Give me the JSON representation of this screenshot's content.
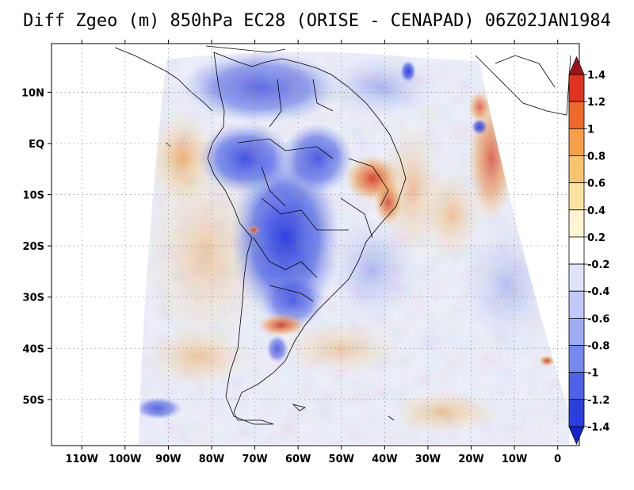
{
  "title": "Diff Zgeo (m) 850hPa EC28 (ORISE - CENAPAD) 06Z02JAN1984",
  "map": {
    "lon_ticks": [
      "110W",
      "100W",
      "90W",
      "80W",
      "70W",
      "60W",
      "50W",
      "40W",
      "30W",
      "20W",
      "10W",
      "0"
    ],
    "lon_values": [
      -110,
      -100,
      -90,
      -80,
      -70,
      -60,
      -50,
      -40,
      -30,
      -20,
      -10,
      0
    ],
    "lat_ticks": [
      "10N",
      "EQ",
      "10S",
      "20S",
      "30S",
      "40S",
      "50S"
    ],
    "lat_values": [
      10,
      0,
      -10,
      -20,
      -30,
      -40,
      -50
    ],
    "lon_range": [
      -117,
      5
    ],
    "lat_range": [
      -59,
      19.5
    ],
    "grid": true
  },
  "colorbar": {
    "labels": [
      "1.4",
      "1.2",
      "1",
      "0.8",
      "0.6",
      "0.4",
      "0.2",
      "-0.2",
      "-0.4",
      "-0.6",
      "-0.8",
      "-1",
      "-1.2",
      "-1.4"
    ],
    "colors": [
      "#b31a1a",
      "#e0341f",
      "#ef6a2a",
      "#f5a048",
      "#f8c56e",
      "#fbe2a0",
      "#fdf4d2",
      "#ffffff",
      "#dfe4fb",
      "#c0c9f7",
      "#9eadf3",
      "#7689ee",
      "#4e63e7",
      "#2b3fdf",
      "#1d29c9"
    ],
    "ext_top_color": "#a3121a",
    "ext_bottom_color": "#1522d0"
  }
}
